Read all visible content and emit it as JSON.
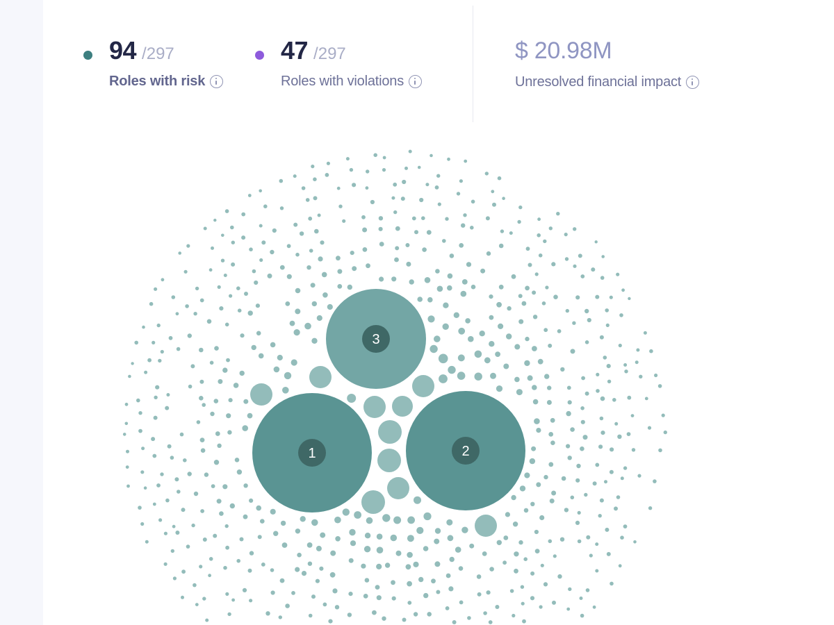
{
  "colors": {
    "risk_dot": "#3d7f80",
    "violation_dot": "#8e5bdc",
    "bubble_dark": "#5a9493",
    "bubble_mid": "#73a6a5",
    "bubble_light": "#93bcba",
    "badge": "#3f6866"
  },
  "metrics": {
    "risk": {
      "value": "94",
      "total": "/297",
      "label": "Roles with risk",
      "info_icon": "info-icon"
    },
    "violations": {
      "value": "47",
      "total": "/297",
      "label": "Roles with violations",
      "info_icon": "info-icon"
    },
    "financial": {
      "value": "$ 20.98M",
      "label": "Unresolved financial impact",
      "info_icon": "info-icon"
    }
  },
  "chart_data": {
    "type": "bubble-cluster",
    "clusters": [
      {
        "rank": "1",
        "size": "large"
      },
      {
        "rank": "2",
        "size": "large"
      },
      {
        "rank": "3",
        "size": "medium"
      }
    ]
  }
}
